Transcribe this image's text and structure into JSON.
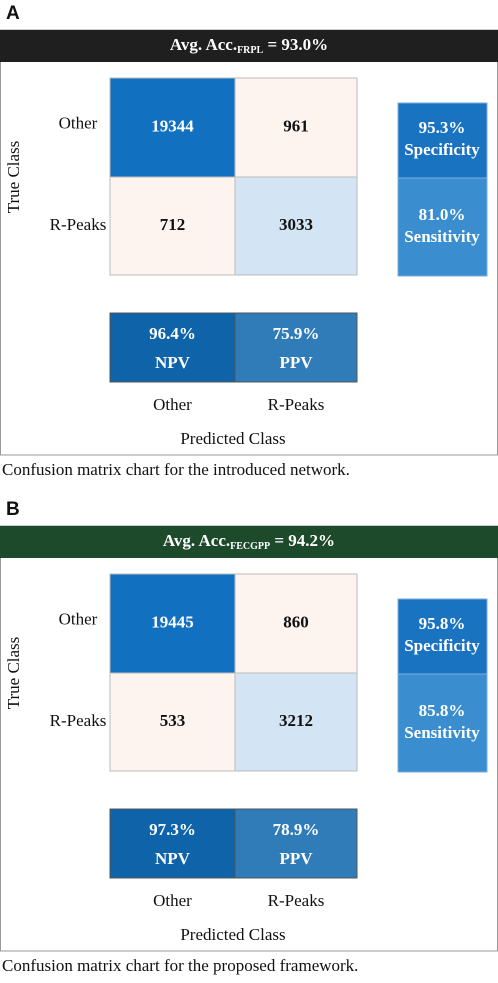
{
  "panels": [
    {
      "label": "A",
      "title_main": "Avg. Acc.",
      "title_sub": "FRPL",
      "title_value": " = 93.0%",
      "y_label": "True Class",
      "x_label": "Predicted Class",
      "row_labels": [
        "Other",
        "R-Peaks"
      ],
      "col_labels": [
        "Other",
        "R-Peaks"
      ],
      "cells": [
        [
          "19344",
          "961"
        ],
        [
          "712",
          "3033"
        ]
      ],
      "row_metrics": [
        {
          "value": "95.3%",
          "name": "Specificity"
        },
        {
          "value": "81.0%",
          "name": "Sensitivity"
        }
      ],
      "col_metrics": [
        {
          "value": "96.4%",
          "name": "NPV"
        },
        {
          "value": "75.9%",
          "name": "PPV"
        }
      ],
      "caption": "Confusion matrix chart for the introduced network."
    },
    {
      "label": "B",
      "title_main": "Avg. Acc.",
      "title_sub": "FECGPP",
      "title_value": " = 94.2%",
      "y_label": "True Class",
      "x_label": "Predicted Class",
      "row_labels": [
        "Other",
        "R-Peaks"
      ],
      "col_labels": [
        "Other",
        "R-Peaks"
      ],
      "cells": [
        [
          "19445",
          "860"
        ],
        [
          "533",
          "3212"
        ]
      ],
      "row_metrics": [
        {
          "value": "95.8%",
          "name": "Specificity"
        },
        {
          "value": "85.8%",
          "name": "Sensitivity"
        }
      ],
      "col_metrics": [
        {
          "value": "97.3%",
          "name": "NPV"
        },
        {
          "value": "78.9%",
          "name": "PPV"
        }
      ],
      "caption": "Confusion matrix chart for the proposed framework."
    }
  ]
}
